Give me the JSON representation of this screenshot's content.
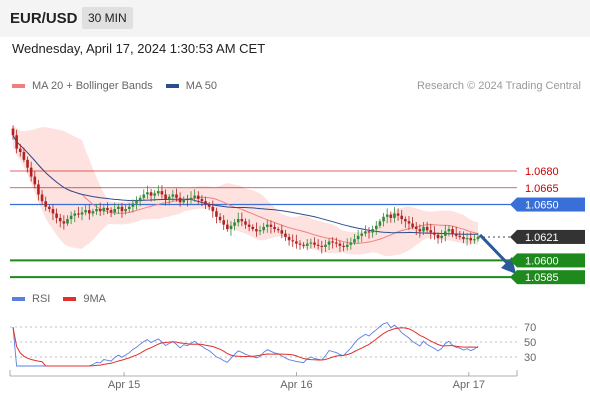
{
  "header": {
    "pair": "EUR/USD",
    "timeframe": "30 MIN"
  },
  "datetime": "Wednesday, April 17, 2024 1:30:53 AM CET",
  "legend": [
    {
      "label": "MA 20 + Bollinger Bands",
      "color": "#f08080"
    },
    {
      "label": "MA 50",
      "color": "#2a4d8f"
    }
  ],
  "credit": "Research © 2024 Trading Central",
  "rsi_legend": [
    {
      "label": "RSI",
      "color": "#5b7fe0"
    },
    {
      "label": "9MA",
      "color": "#e03030"
    }
  ],
  "colors": {
    "up": "#2e8b3a",
    "down": "#b22222",
    "support": "#1e8a1e",
    "ma50": "#2a4d8f",
    "ma20": "#f08080",
    "band": "#fde2e0",
    "arrow": "#2a5a9a"
  },
  "chart_data": [
    {
      "type": "candlestick",
      "title": "",
      "ylim": [
        1.0578,
        1.0748
      ],
      "x_ticks": [
        {
          "label": "Apr 15",
          "pos": 0.225
        },
        {
          "label": "Apr 16",
          "pos": 0.565
        },
        {
          "label": "Apr 17",
          "pos": 0.905
        }
      ],
      "levels": [
        {
          "label": "1.0680",
          "value": 1.068,
          "type": "resistance",
          "color": "#cc0000"
        },
        {
          "label": "1.0665",
          "value": 1.0665,
          "type": "resistance",
          "color": "#cc0000"
        },
        {
          "label": "1.0650",
          "value": 1.065,
          "type": "pivot",
          "color": "#3a6fd8"
        },
        {
          "label": "1.0621",
          "value": 1.0621,
          "type": "last_price",
          "color": "#333333"
        },
        {
          "label": "1.0600",
          "value": 1.06,
          "type": "support",
          "color": "#1e8a1e"
        },
        {
          "label": "1.0585",
          "value": 1.0585,
          "type": "support",
          "color": "#1e8a1e"
        }
      ],
      "close": [
        1.0712,
        1.07,
        1.0697,
        1.069,
        1.0683,
        1.0675,
        1.0668,
        1.0659,
        1.0653,
        1.0648,
        1.0646,
        1.0642,
        1.0638,
        1.0635,
        1.0633,
        1.0637,
        1.064,
        1.0642,
        1.0641,
        1.0643,
        1.0645,
        1.0642,
        1.0644,
        1.0646,
        1.0644,
        1.0647,
        1.0645,
        1.0643,
        1.0646,
        1.0648,
        1.0644,
        1.0646,
        1.0648,
        1.0651,
        1.0653,
        1.0656,
        1.0659,
        1.0661,
        1.0658,
        1.066,
        1.0662,
        1.0659,
        1.0655,
        1.0657,
        1.0659,
        1.0656,
        1.0652,
        1.0655,
        1.0654,
        1.0656,
        1.0658,
        1.0655,
        1.0653,
        1.065,
        1.0648,
        1.0644,
        1.0639,
        1.0636,
        1.0632,
        1.0628,
        1.0631,
        1.0634,
        1.0637,
        1.0635,
        1.0632,
        1.063,
        1.0628,
        1.0626,
        1.0627,
        1.063,
        1.0632,
        1.063,
        1.0628,
        1.0627,
        1.0624,
        1.0621,
        1.0618,
        1.0617,
        1.0615,
        1.0614,
        1.0613,
        1.0615,
        1.0616,
        1.0614,
        1.0613,
        1.0612,
        1.0614,
        1.0617,
        1.0616,
        1.0615,
        1.0613,
        1.0612,
        1.0614,
        1.0616,
        1.0619,
        1.0622,
        1.0624,
        1.0626,
        1.0625,
        1.0628,
        1.0631,
        1.0635,
        1.0639,
        1.0641,
        1.0638,
        1.0642,
        1.064,
        1.0637,
        1.0635,
        1.0633,
        1.063,
        1.0628,
        1.0626,
        1.063,
        1.0627,
        1.0625,
        1.0623,
        1.062,
        1.0622,
        1.0626,
        1.0628,
        1.0624,
        1.0622,
        1.0621,
        1.0619,
        1.062,
        1.0618,
        1.0619,
        1.0621
      ]
    },
    {
      "type": "line",
      "title": "RSI",
      "ylim": [
        10,
        90
      ],
      "y_ticks": [
        70,
        50,
        30
      ]
    }
  ]
}
